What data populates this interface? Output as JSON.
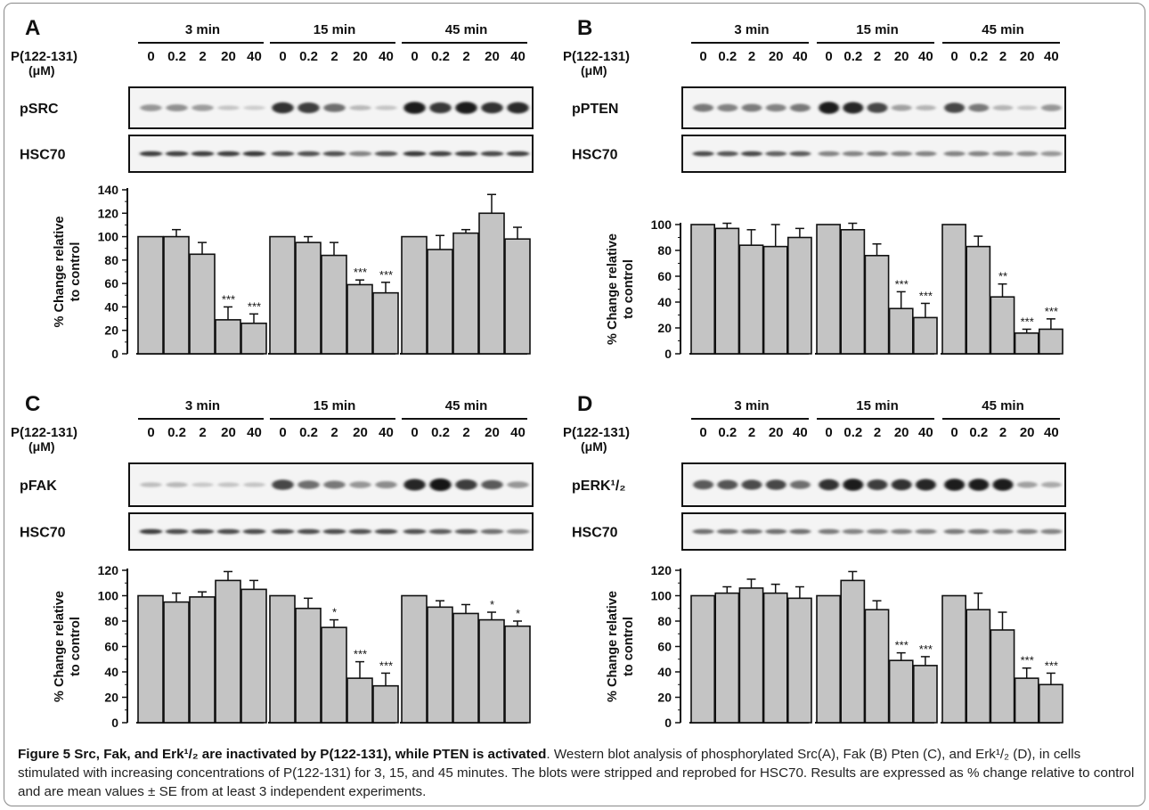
{
  "conc_label": "P(122-131)",
  "conc_unit": "(μM)",
  "loading_label": "HSC70",
  "y_label_line1": "% Change relative",
  "y_label_line2": "to control",
  "times": [
    "3 min",
    "15 min",
    "45 min"
  ],
  "concentrations": [
    "0",
    "0.2",
    "2",
    "20",
    "40"
  ],
  "caption": {
    "bold_part": "Figure 5 Src, Fak, and Erk¹/₂ are inactivated by P(122-131), while PTEN is activated",
    "body": ". Western blot analysis of phosphorylated Src(A), Fak (B) Pten (C), and Erk¹/₂ (D), in cells stimulated with increasing concentrations of P(122-131) for 3, 15, and 45 minutes. The blots were stripped and reprobed for HSC70. Results are expressed as % change relative to control and are mean values ± SE from at least 3 independent experiments."
  },
  "chart_data": [
    {
      "type": "bar",
      "panel": "A",
      "protein": "pSRC",
      "groups": [
        "3 min",
        "15 min",
        "45 min"
      ],
      "categories": [
        "0",
        "0.2",
        "2",
        "20",
        "40"
      ],
      "ylim": [
        0,
        140
      ],
      "yticks": [
        0,
        20,
        40,
        60,
        80,
        100,
        120,
        140
      ],
      "values": [
        [
          100,
          100,
          85,
          29,
          26
        ],
        [
          100,
          95,
          84,
          59,
          52
        ],
        [
          100,
          89,
          103,
          120,
          98
        ]
      ],
      "errors": [
        [
          0,
          6,
          10,
          11,
          8
        ],
        [
          0,
          5,
          11,
          4,
          9
        ],
        [
          0,
          12,
          3,
          16,
          10
        ]
      ],
      "annotations": [
        [
          "",
          "",
          "",
          "***",
          "***"
        ],
        [
          "",
          "",
          "",
          "***",
          "***"
        ],
        [
          "",
          "",
          "",
          "",
          ""
        ]
      ],
      "bands": [
        [
          0.35,
          0.38,
          0.32,
          0.12,
          0.08
        ],
        [
          0.85,
          0.8,
          0.55,
          0.18,
          0.12
        ],
        [
          0.95,
          0.82,
          0.95,
          0.85,
          0.88
        ]
      ],
      "hsc70": [
        0.8,
        0.78,
        0.8,
        0.8,
        0.82,
        0.72,
        0.7,
        0.7,
        0.45,
        0.68,
        0.82,
        0.78,
        0.8,
        0.75,
        0.78
      ]
    },
    {
      "type": "bar",
      "panel": "B",
      "protein": "pPTEN",
      "groups": [
        "3 min",
        "15 min",
        "45 min"
      ],
      "categories": [
        "0",
        "0.2",
        "2",
        "20",
        "40"
      ],
      "ylim": [
        0,
        100
      ],
      "yticks": [
        0,
        20,
        40,
        60,
        80,
        100
      ],
      "values": [
        [
          100,
          97,
          84,
          83,
          90
        ],
        [
          100,
          96,
          76,
          35,
          28
        ],
        [
          100,
          83,
          44,
          16,
          19
        ]
      ],
      "errors": [
        [
          0,
          4,
          12,
          17,
          7
        ],
        [
          0,
          5,
          9,
          13,
          11
        ],
        [
          0,
          8,
          10,
          3,
          8
        ]
      ],
      "annotations": [
        [
          "",
          "",
          "",
          "",
          ""
        ],
        [
          "",
          "",
          "",
          "***",
          "***"
        ],
        [
          "",
          "",
          "**",
          "***",
          "***"
        ]
      ],
      "bands": [
        [
          0.5,
          0.45,
          0.48,
          0.45,
          0.5
        ],
        [
          0.95,
          0.9,
          0.75,
          0.3,
          0.2
        ],
        [
          0.75,
          0.5,
          0.2,
          0.12,
          0.35
        ]
      ],
      "hsc70": [
        0.72,
        0.68,
        0.75,
        0.62,
        0.65,
        0.45,
        0.45,
        0.5,
        0.45,
        0.45,
        0.45,
        0.45,
        0.42,
        0.4,
        0.35
      ]
    },
    {
      "type": "bar",
      "panel": "C",
      "protein": "pFAK",
      "groups": [
        "3 min",
        "15 min",
        "45 min"
      ],
      "categories": [
        "0",
        "0.2",
        "2",
        "20",
        "40"
      ],
      "ylim": [
        0,
        120
      ],
      "yticks": [
        0,
        20,
        40,
        60,
        80,
        100,
        120
      ],
      "values": [
        [
          100,
          95,
          99,
          112,
          105
        ],
        [
          100,
          90,
          75,
          35,
          29
        ],
        [
          100,
          91,
          86,
          81,
          76
        ]
      ],
      "errors": [
        [
          0,
          7,
          4,
          7,
          7
        ],
        [
          0,
          8,
          6,
          13,
          10
        ],
        [
          0,
          5,
          7,
          6,
          4
        ]
      ],
      "annotations": [
        [
          "",
          "",
          "",
          "",
          ""
        ],
        [
          "",
          "",
          "*",
          "***",
          "***"
        ],
        [
          "",
          "",
          "",
          "*",
          "*"
        ]
      ],
      "bands": [
        [
          0.15,
          0.18,
          0.1,
          0.12,
          0.12
        ],
        [
          0.75,
          0.55,
          0.5,
          0.35,
          0.4
        ],
        [
          0.9,
          1.0,
          0.8,
          0.65,
          0.35
        ]
      ],
      "hsc70": [
        0.8,
        0.72,
        0.72,
        0.72,
        0.72,
        0.72,
        0.72,
        0.72,
        0.7,
        0.72,
        0.7,
        0.65,
        0.65,
        0.55,
        0.4
      ]
    },
    {
      "type": "bar",
      "panel": "D",
      "protein": "pERK¹/₂",
      "groups": [
        "3 min",
        "15 min",
        "45 min"
      ],
      "categories": [
        "0",
        "0.2",
        "2",
        "20",
        "40"
      ],
      "ylim": [
        0,
        120
      ],
      "yticks": [
        0,
        20,
        40,
        60,
        80,
        100,
        120
      ],
      "values": [
        [
          100,
          102,
          106,
          102,
          98
        ],
        [
          100,
          112,
          89,
          49,
          45
        ],
        [
          100,
          89,
          73,
          35,
          30
        ]
      ],
      "errors": [
        [
          0,
          5,
          7,
          7,
          9
        ],
        [
          0,
          7,
          7,
          6,
          7
        ],
        [
          0,
          13,
          14,
          8,
          9
        ]
      ],
      "annotations": [
        [
          "",
          "",
          "",
          "",
          ""
        ],
        [
          "",
          "",
          "",
          "***",
          "***"
        ],
        [
          "",
          "",
          "",
          "***",
          "***"
        ]
      ],
      "bands": [
        [
          0.65,
          0.68,
          0.72,
          0.75,
          0.55
        ],
        [
          0.85,
          0.95,
          0.8,
          0.85,
          0.9
        ],
        [
          0.95,
          0.95,
          0.95,
          0.3,
          0.25
        ]
      ],
      "hsc70": [
        0.55,
        0.55,
        0.55,
        0.55,
        0.55,
        0.5,
        0.45,
        0.45,
        0.45,
        0.45,
        0.5,
        0.5,
        0.45,
        0.45,
        0.45
      ]
    }
  ]
}
